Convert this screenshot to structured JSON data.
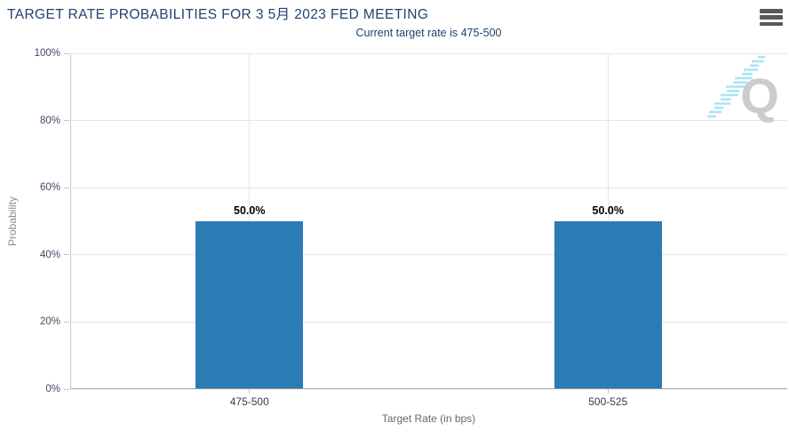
{
  "chart_data": {
    "type": "bar",
    "title": "TARGET RATE PROBABILITIES FOR 3 5月 2023 FED MEETING",
    "subtitle": "Current target rate is 475-500",
    "categories": [
      "475-500",
      "500-525"
    ],
    "values": [
      50.0,
      50.0
    ],
    "value_labels": [
      "50.0%",
      "50.0%"
    ],
    "xlabel": "Target Rate (in bps)",
    "ylabel": "Probability",
    "ylim": [
      0,
      100
    ],
    "yticks": [
      0,
      20,
      40,
      60,
      80,
      100
    ],
    "ytick_labels": [
      "0%",
      "20%",
      "40%",
      "60%",
      "80%",
      "100%"
    ],
    "grid": true,
    "legend_position": "none",
    "bar_color": "#2b7cb5"
  },
  "menu": {
    "icon": "hamburger-menu-icon"
  },
  "watermark": {
    "letter": "Q",
    "letter_color": "#c9cacc",
    "dash_color": "#8ed7f2"
  }
}
